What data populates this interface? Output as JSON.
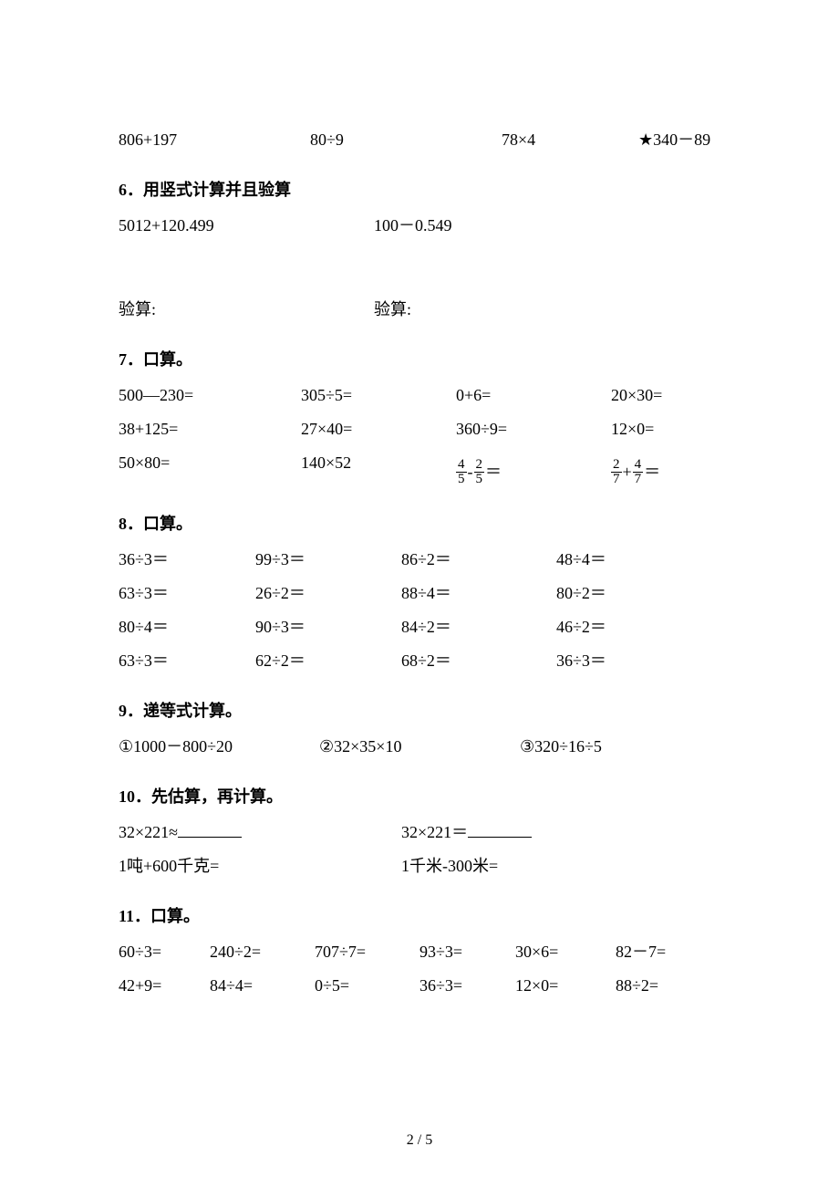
{
  "topRow": {
    "a": "806+197",
    "b": "80÷9",
    "c": "78×4",
    "d": "★340－89"
  },
  "q6": {
    "title": "6．用竖式计算并且验算",
    "a": "5012+120.499",
    "b": "100－0.549",
    "check": "验算:"
  },
  "q7": {
    "title": "7．口算。",
    "rows": [
      [
        "500—230=",
        "305÷5=",
        "0+6=",
        "20×30="
      ],
      [
        "38+125=",
        "27×40=",
        "360÷9=",
        "12×0="
      ],
      [
        "50×80=",
        "140×52",
        "FRAC1",
        "FRAC2"
      ]
    ],
    "frac1": {
      "n1": "4",
      "d1": "5",
      "op": "-",
      "n2": "2",
      "d2": "5"
    },
    "frac2": {
      "n1": "2",
      "d1": "7",
      "op": "+",
      "n2": "4",
      "d2": "7"
    }
  },
  "q8": {
    "title": "8．口算。",
    "rows": [
      [
        "36÷3＝",
        "99÷3＝",
        "86÷2＝",
        "48÷4＝"
      ],
      [
        "63÷3＝",
        "26÷2＝",
        "88÷4＝",
        "80÷2＝"
      ],
      [
        "80÷4＝",
        "90÷3＝",
        "84÷2＝",
        "46÷2＝"
      ],
      [
        "63÷3＝",
        "62÷2＝",
        "68÷2＝",
        "36÷3＝"
      ]
    ]
  },
  "q9": {
    "title": "9．递等式计算。",
    "a": "①1000－800÷20",
    "b": "②32×35×10",
    "c": "③320÷16÷5"
  },
  "q10": {
    "title": "10．先估算，再计算。",
    "a1": "32×221≈",
    "a2": "32×221＝",
    "b1": "1吨+600千克=",
    "b2": "1千米-300米="
  },
  "q11": {
    "title": "11．口算。",
    "rows": [
      [
        "60÷3=",
        "240÷2=",
        "707÷7=",
        "93÷3=",
        "30×6=",
        "82－7="
      ],
      [
        "42+9=",
        "84÷4=",
        "0÷5=",
        "36÷3=",
        "12×0=",
        "88÷2="
      ]
    ]
  },
  "footer": "2 / 5"
}
